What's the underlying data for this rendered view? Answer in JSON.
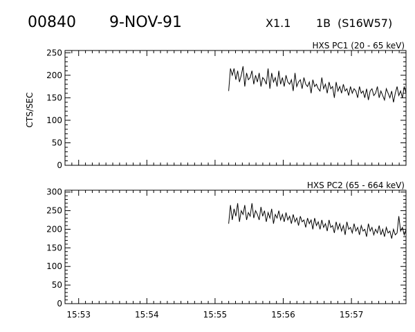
{
  "header": {
    "event_id": "00840",
    "date": "9-NOV-91",
    "flare_class": "X1.1",
    "optical_class": "1B",
    "location": "(S16W57)"
  },
  "chart_data": [
    {
      "type": "line",
      "title": "HXS PC1 (20 - 65 keV)",
      "ylabel": "CTS/SEC",
      "xlabel": "",
      "x_unit": "minutes of day (15:53 = 953)",
      "xlim": [
        952.8,
        957.8
      ],
      "ylim": [
        0,
        255
      ],
      "yticks": [
        0,
        50,
        100,
        150,
        200,
        250
      ],
      "ytick_labels": [
        "0",
        "50",
        "100",
        "150",
        "200",
        "250"
      ],
      "xticks": [
        953,
        954,
        955,
        956,
        957
      ],
      "xtick_labels": [],
      "series": [
        {
          "x_start": 955.2,
          "x_end": 957.8,
          "values": [
            165,
            215,
            200,
            215,
            190,
            210,
            185,
            200,
            220,
            175,
            205,
            190,
            195,
            210,
            180,
            200,
            185,
            205,
            175,
            195,
            190,
            180,
            215,
            170,
            205,
            185,
            195,
            175,
            210,
            180,
            195,
            175,
            200,
            185,
            180,
            190,
            165,
            205,
            175,
            185,
            190,
            170,
            195,
            180,
            175,
            185,
            160,
            190,
            175,
            180,
            170,
            165,
            195,
            170,
            180,
            160,
            185,
            170,
            175,
            150,
            185,
            165,
            175,
            160,
            180,
            165,
            170,
            155,
            175,
            160,
            170,
            165,
            150,
            175,
            160,
            165,
            150,
            170,
            145,
            165,
            170,
            155,
            160,
            175,
            150,
            165,
            155,
            145,
            170,
            160,
            150,
            165,
            140,
            160,
            175,
            155,
            165,
            150,
            175,
            160
          ]
        }
      ]
    },
    {
      "type": "line",
      "title": "HXS PC2 (65 - 664 keV)",
      "ylabel": "",
      "xlabel": "",
      "x_unit": "minutes of day (15:53 = 953)",
      "xlim": [
        952.8,
        957.8
      ],
      "ylim": [
        0,
        305
      ],
      "yticks": [
        0,
        50,
        100,
        150,
        200,
        250,
        300
      ],
      "ytick_labels": [
        "0",
        "50",
        "100",
        "150",
        "200",
        "250",
        "300"
      ],
      "xticks": [
        953,
        954,
        955,
        956,
        957
      ],
      "xtick_labels": [
        "15:53",
        "15:54",
        "15:55",
        "15:56",
        "15:57"
      ],
      "series": [
        {
          "x_start": 955.2,
          "x_end": 957.8,
          "values": [
            215,
            265,
            225,
            255,
            235,
            270,
            220,
            250,
            240,
            265,
            225,
            245,
            235,
            270,
            230,
            250,
            240,
            225,
            260,
            235,
            250,
            220,
            245,
            230,
            255,
            215,
            240,
            230,
            250,
            225,
            240,
            220,
            245,
            225,
            235,
            215,
            240,
            220,
            230,
            210,
            235,
            220,
            225,
            205,
            230,
            215,
            225,
            200,
            230,
            210,
            220,
            200,
            225,
            205,
            215,
            195,
            225,
            205,
            210,
            190,
            220,
            200,
            215,
            195,
            210,
            185,
            220,
            200,
            205,
            190,
            215,
            195,
            205,
            185,
            210,
            195,
            200,
            180,
            215,
            195,
            205,
            185,
            200,
            190,
            210,
            185,
            200,
            180,
            205,
            190,
            195,
            175,
            200,
            185,
            190,
            235,
            195,
            205,
            185,
            200
          ]
        }
      ]
    }
  ]
}
